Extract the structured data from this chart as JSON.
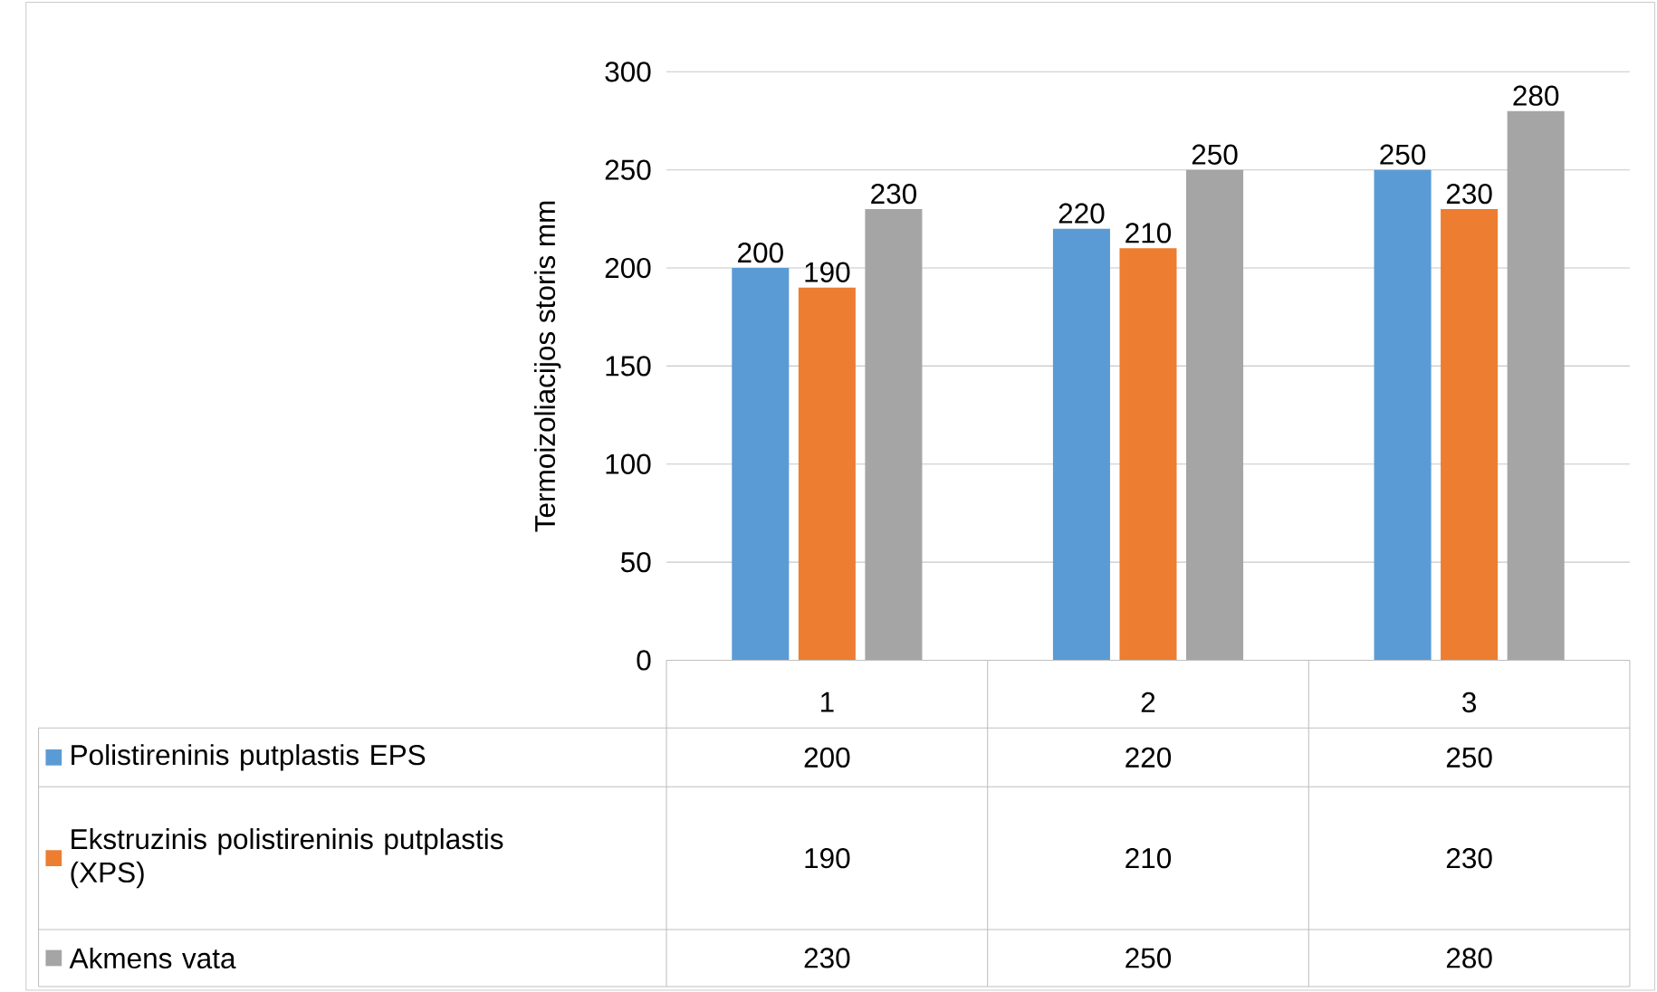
{
  "chart_data": {
    "type": "bar",
    "ylabel": "Termoizoliacijos storis mm",
    "categories": [
      "1",
      "2",
      "3"
    ],
    "series": [
      {
        "name": "Polistireninis putplastis EPS",
        "color": "#5b9bd5",
        "values": [
          200,
          220,
          250
        ],
        "value_labels": [
          "200",
          "220",
          "250"
        ]
      },
      {
        "name": "Ekstruzinis polistireninis putplastis (XPS)",
        "color": "#ed7d31",
        "values": [
          190,
          210,
          230
        ],
        "value_labels": [
          "190",
          "210",
          "230"
        ]
      },
      {
        "name": "Akmens vata",
        "color": "#a5a5a5",
        "values": [
          230,
          250,
          280
        ],
        "value_labels": [
          "230",
          "250",
          "280"
        ]
      }
    ],
    "ylim": [
      0,
      300
    ],
    "yticks": [
      0,
      50,
      100,
      150,
      200,
      250,
      300
    ],
    "grid": "y",
    "data_labels": true,
    "legend": "bottom"
  }
}
